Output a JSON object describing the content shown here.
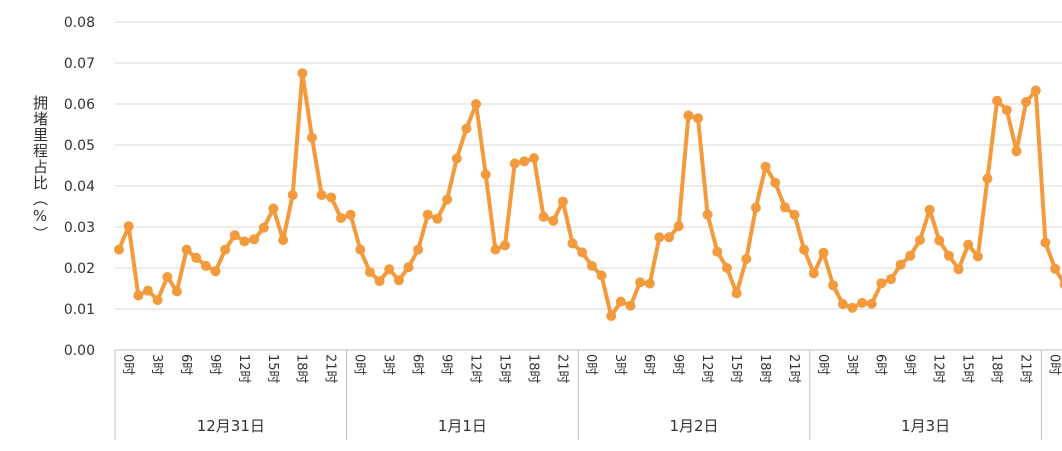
{
  "chart_data": {
    "type": "line",
    "ylabel": "拥堵里程占比（%）",
    "ylim": [
      0,
      0.08
    ],
    "yticks": [
      "0.00",
      "0.01",
      "0.02",
      "0.03",
      "0.04",
      "0.05",
      "0.06",
      "0.07",
      "0.08"
    ],
    "grid": true,
    "line_color": "#F39A3D",
    "days": [
      "12月31日",
      "1月1日",
      "1月2日",
      "1月3日"
    ],
    "hour_ticks": [
      "0时",
      "3时",
      "6时",
      "9时",
      "12时",
      "15时",
      "18时",
      "21时"
    ],
    "series": [
      {
        "values": [
          0.0245,
          0.0302,
          0.0133,
          0.0145,
          0.0122,
          0.0178,
          0.0143,
          0.0245,
          0.0225,
          0.0205,
          0.0192,
          0.0245,
          0.028,
          0.0265,
          0.027,
          0.0298,
          0.0345,
          0.0268,
          0.0378,
          0.0675,
          0.0518,
          0.0378,
          0.0372,
          0.0322,
          0.033,
          0.0245,
          0.019,
          0.0168,
          0.0197,
          0.017,
          0.0202,
          0.0245,
          0.033,
          0.032,
          0.0367,
          0.0467,
          0.054,
          0.06,
          0.0428,
          0.0245,
          0.0255,
          0.0455,
          0.046,
          0.0468,
          0.0325,
          0.0315,
          0.0362,
          0.026,
          0.0238,
          0.0205,
          0.0182,
          0.0083,
          0.0118,
          0.0108,
          0.0165,
          0.0162,
          0.0275,
          0.0275,
          0.0302,
          0.0572,
          0.0565,
          0.033,
          0.024,
          0.02,
          0.0138,
          0.0222,
          0.0347,
          0.0447,
          0.0408,
          0.0348,
          0.033,
          0.0245,
          0.0187,
          0.0237,
          0.0158,
          0.0112,
          0.0103,
          0.0115,
          0.0113,
          0.0163,
          0.0173,
          0.0208,
          0.023,
          0.0268,
          0.0342,
          0.0267,
          0.023,
          0.0197,
          0.0257,
          0.0228,
          0.0418,
          0.0608,
          0.0585,
          0.0485,
          0.0605,
          0.0633,
          0.0262,
          0.0198,
          0.016
        ]
      }
    ]
  }
}
